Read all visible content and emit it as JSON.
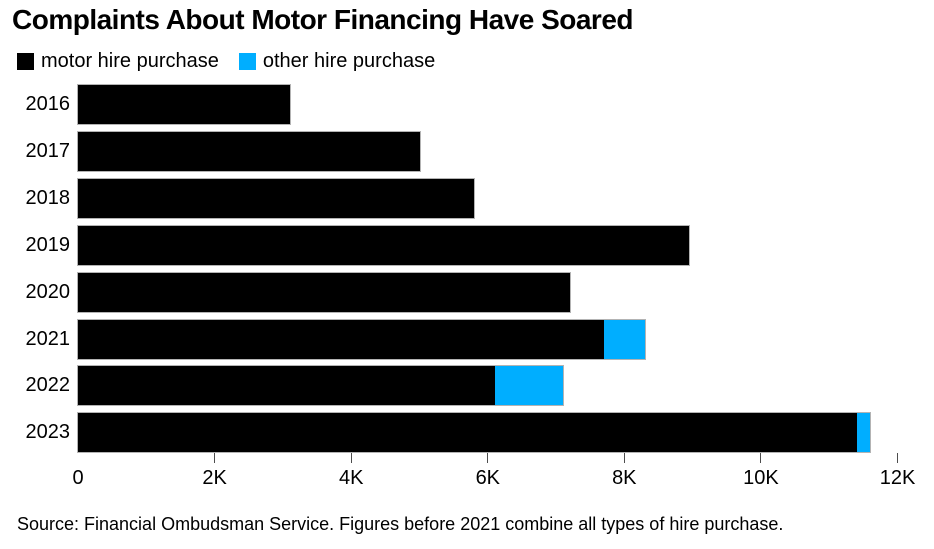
{
  "title": "Complaints About Motor Financing Have Soared",
  "legend": [
    {
      "label": "motor hire purchase",
      "color": "#000000"
    },
    {
      "label": "other hire purchase",
      "color": "#00aeff"
    }
  ],
  "source": "Source: Financial Ombudsman Service. Figures before 2021 combine all types of hire purchase.",
  "chart_data": {
    "type": "bar",
    "orientation": "horizontal",
    "stacked": true,
    "title": "Complaints About Motor Financing Have Soared",
    "categories": [
      "2016",
      "2017",
      "2018",
      "2019",
      "2020",
      "2021",
      "2022",
      "2023"
    ],
    "series": [
      {
        "name": "motor hire purchase",
        "color": "#000000",
        "values": [
          3100,
          5000,
          5800,
          8950,
          7200,
          7700,
          6100,
          11400
        ]
      },
      {
        "name": "other hire purchase",
        "color": "#00aeff",
        "values": [
          0,
          0,
          0,
          0,
          0,
          600,
          1000,
          200
        ]
      }
    ],
    "xlabel": "",
    "ylabel": "",
    "xlim": [
      0,
      12000
    ],
    "x_ticks": [
      {
        "value": 0,
        "label": "0"
      },
      {
        "value": 2000,
        "label": "2K"
      },
      {
        "value": 4000,
        "label": "4K"
      },
      {
        "value": 6000,
        "label": "6K"
      },
      {
        "value": 8000,
        "label": "8K"
      },
      {
        "value": 10000,
        "label": "10K"
      },
      {
        "value": 12000,
        "label": "12K"
      }
    ],
    "grid": false,
    "legend_position": "top-left"
  }
}
